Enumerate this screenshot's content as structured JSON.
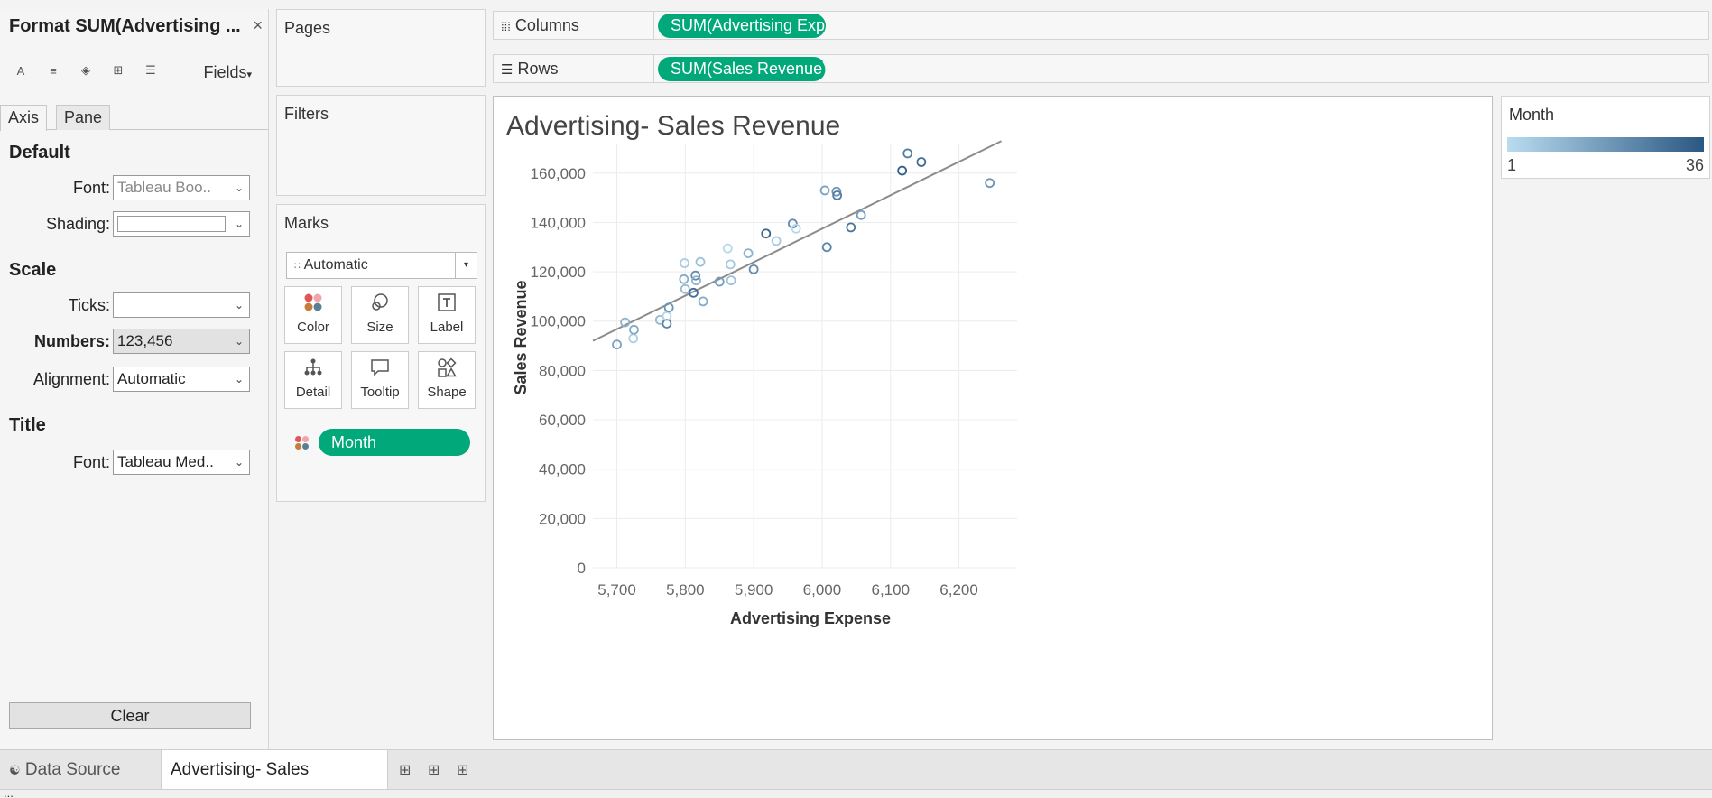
{
  "format_pane": {
    "title": "Format SUM(Advertising ...",
    "close": "×",
    "toolbar_icons": [
      "font-icon",
      "align-icon",
      "shading-icon",
      "borders-icon",
      "lines-icon"
    ],
    "fields_label": "Fields",
    "tabs": [
      {
        "label": "Axis"
      },
      {
        "label": "Pane"
      }
    ],
    "default": {
      "heading": "Default",
      "font_label": "Font:",
      "font_value": "Tableau Boo..",
      "shading_label": "Shading:"
    },
    "scale": {
      "heading": "Scale",
      "ticks_label": "Ticks:",
      "numbers_label": "Numbers:",
      "numbers_value": "123,456",
      "alignment_label": "Alignment:",
      "alignment_value": "Automatic"
    },
    "title_section": {
      "heading": "Title",
      "font_label": "Font:",
      "font_value": "Tableau Med.."
    },
    "clear_label": "Clear"
  },
  "pages": {
    "title": "Pages"
  },
  "filters": {
    "title": "Filters"
  },
  "marks": {
    "title": "Marks",
    "mark_type": "Automatic",
    "buttons": [
      {
        "label": "Color",
        "icon": "color-icon"
      },
      {
        "label": "Size",
        "icon": "size-icon"
      },
      {
        "label": "Label",
        "icon": "label-icon"
      },
      {
        "label": "Detail",
        "icon": "detail-icon"
      },
      {
        "label": "Tooltip",
        "icon": "tooltip-icon"
      },
      {
        "label": "Shape",
        "icon": "shape-icon"
      }
    ],
    "pill": "Month"
  },
  "columns": {
    "label": "Columns",
    "pill": "SUM(Advertising Exp.."
  },
  "rows": {
    "label": "Rows",
    "pill": "SUM(Sales Revenue)"
  },
  "legend": {
    "title": "Month",
    "min": "1",
    "max": "36",
    "color_start": "#b9dcef",
    "color_end": "#2a5783"
  },
  "tabs": {
    "data_source": "Data Source",
    "sheet": "Advertising- Sales Revenue"
  },
  "status": {
    "text": "..."
  },
  "chart_data": {
    "type": "scatter",
    "title": "Advertising- Sales Revenue",
    "xlabel": "Advertising Expense",
    "ylabel": "Sales Revenue",
    "xlim": [
      5665,
      6285
    ],
    "ylim": [
      0,
      172000
    ],
    "x_ticks": [
      "5,700",
      "5,800",
      "5,900",
      "6,000",
      "6,100",
      "6,200"
    ],
    "x_tick_values": [
      5700,
      5800,
      5900,
      6000,
      6100,
      6200
    ],
    "y_ticks": [
      "0",
      "20,000",
      "40,000",
      "60,000",
      "80,000",
      "100,000",
      "120,000",
      "140,000",
      "160,000"
    ],
    "y_tick_values": [
      0,
      20000,
      40000,
      60000,
      80000,
      100000,
      120000,
      140000,
      160000
    ],
    "grid": true,
    "color_by": "Month",
    "trend_line": {
      "x": [
        5665,
        6262
      ],
      "y": [
        92000,
        173000
      ]
    },
    "points": [
      {
        "x": 5700,
        "y": 90500,
        "month": 16
      },
      {
        "x": 5712,
        "y": 99500,
        "month": 12
      },
      {
        "x": 5724,
        "y": 93000,
        "month": 4
      },
      {
        "x": 5725,
        "y": 96500,
        "month": 14
      },
      {
        "x": 5763,
        "y": 100500,
        "month": 10
      },
      {
        "x": 5773,
        "y": 99000,
        "month": 24
      },
      {
        "x": 5773,
        "y": 102000,
        "month": 3
      },
      {
        "x": 5776,
        "y": 105500,
        "month": 20
      },
      {
        "x": 5798,
        "y": 117000,
        "month": 14
      },
      {
        "x": 5799,
        "y": 123500,
        "month": 5
      },
      {
        "x": 5800,
        "y": 113000,
        "month": 10
      },
      {
        "x": 5812,
        "y": 111500,
        "month": 30
      },
      {
        "x": 5815,
        "y": 118500,
        "month": 22
      },
      {
        "x": 5816,
        "y": 116500,
        "month": 12
      },
      {
        "x": 5822,
        "y": 124000,
        "month": 8
      },
      {
        "x": 5826,
        "y": 108000,
        "month": 14
      },
      {
        "x": 5850,
        "y": 116000,
        "month": 18
      },
      {
        "x": 5862,
        "y": 129500,
        "month": 2
      },
      {
        "x": 5866,
        "y": 123000,
        "month": 6
      },
      {
        "x": 5867,
        "y": 116500,
        "month": 8
      },
      {
        "x": 5892,
        "y": 127500,
        "month": 12
      },
      {
        "x": 5900,
        "y": 121000,
        "month": 22
      },
      {
        "x": 5918,
        "y": 135500,
        "month": 32
      },
      {
        "x": 5933,
        "y": 132500,
        "month": 6
      },
      {
        "x": 5957,
        "y": 139500,
        "month": 22
      },
      {
        "x": 5962,
        "y": 137500,
        "month": 2
      },
      {
        "x": 6004,
        "y": 153000,
        "month": 16
      },
      {
        "x": 6007,
        "y": 130000,
        "month": 24
      },
      {
        "x": 6021,
        "y": 152500,
        "month": 20
      },
      {
        "x": 6022,
        "y": 151000,
        "month": 26
      },
      {
        "x": 6042,
        "y": 138000,
        "month": 28
      },
      {
        "x": 6057,
        "y": 143000,
        "month": 18
      },
      {
        "x": 6117,
        "y": 161000,
        "month": 34
      },
      {
        "x": 6125,
        "y": 168000,
        "month": 26
      },
      {
        "x": 6145,
        "y": 164500,
        "month": 30
      },
      {
        "x": 6245,
        "y": 156000,
        "month": 20
      }
    ]
  }
}
